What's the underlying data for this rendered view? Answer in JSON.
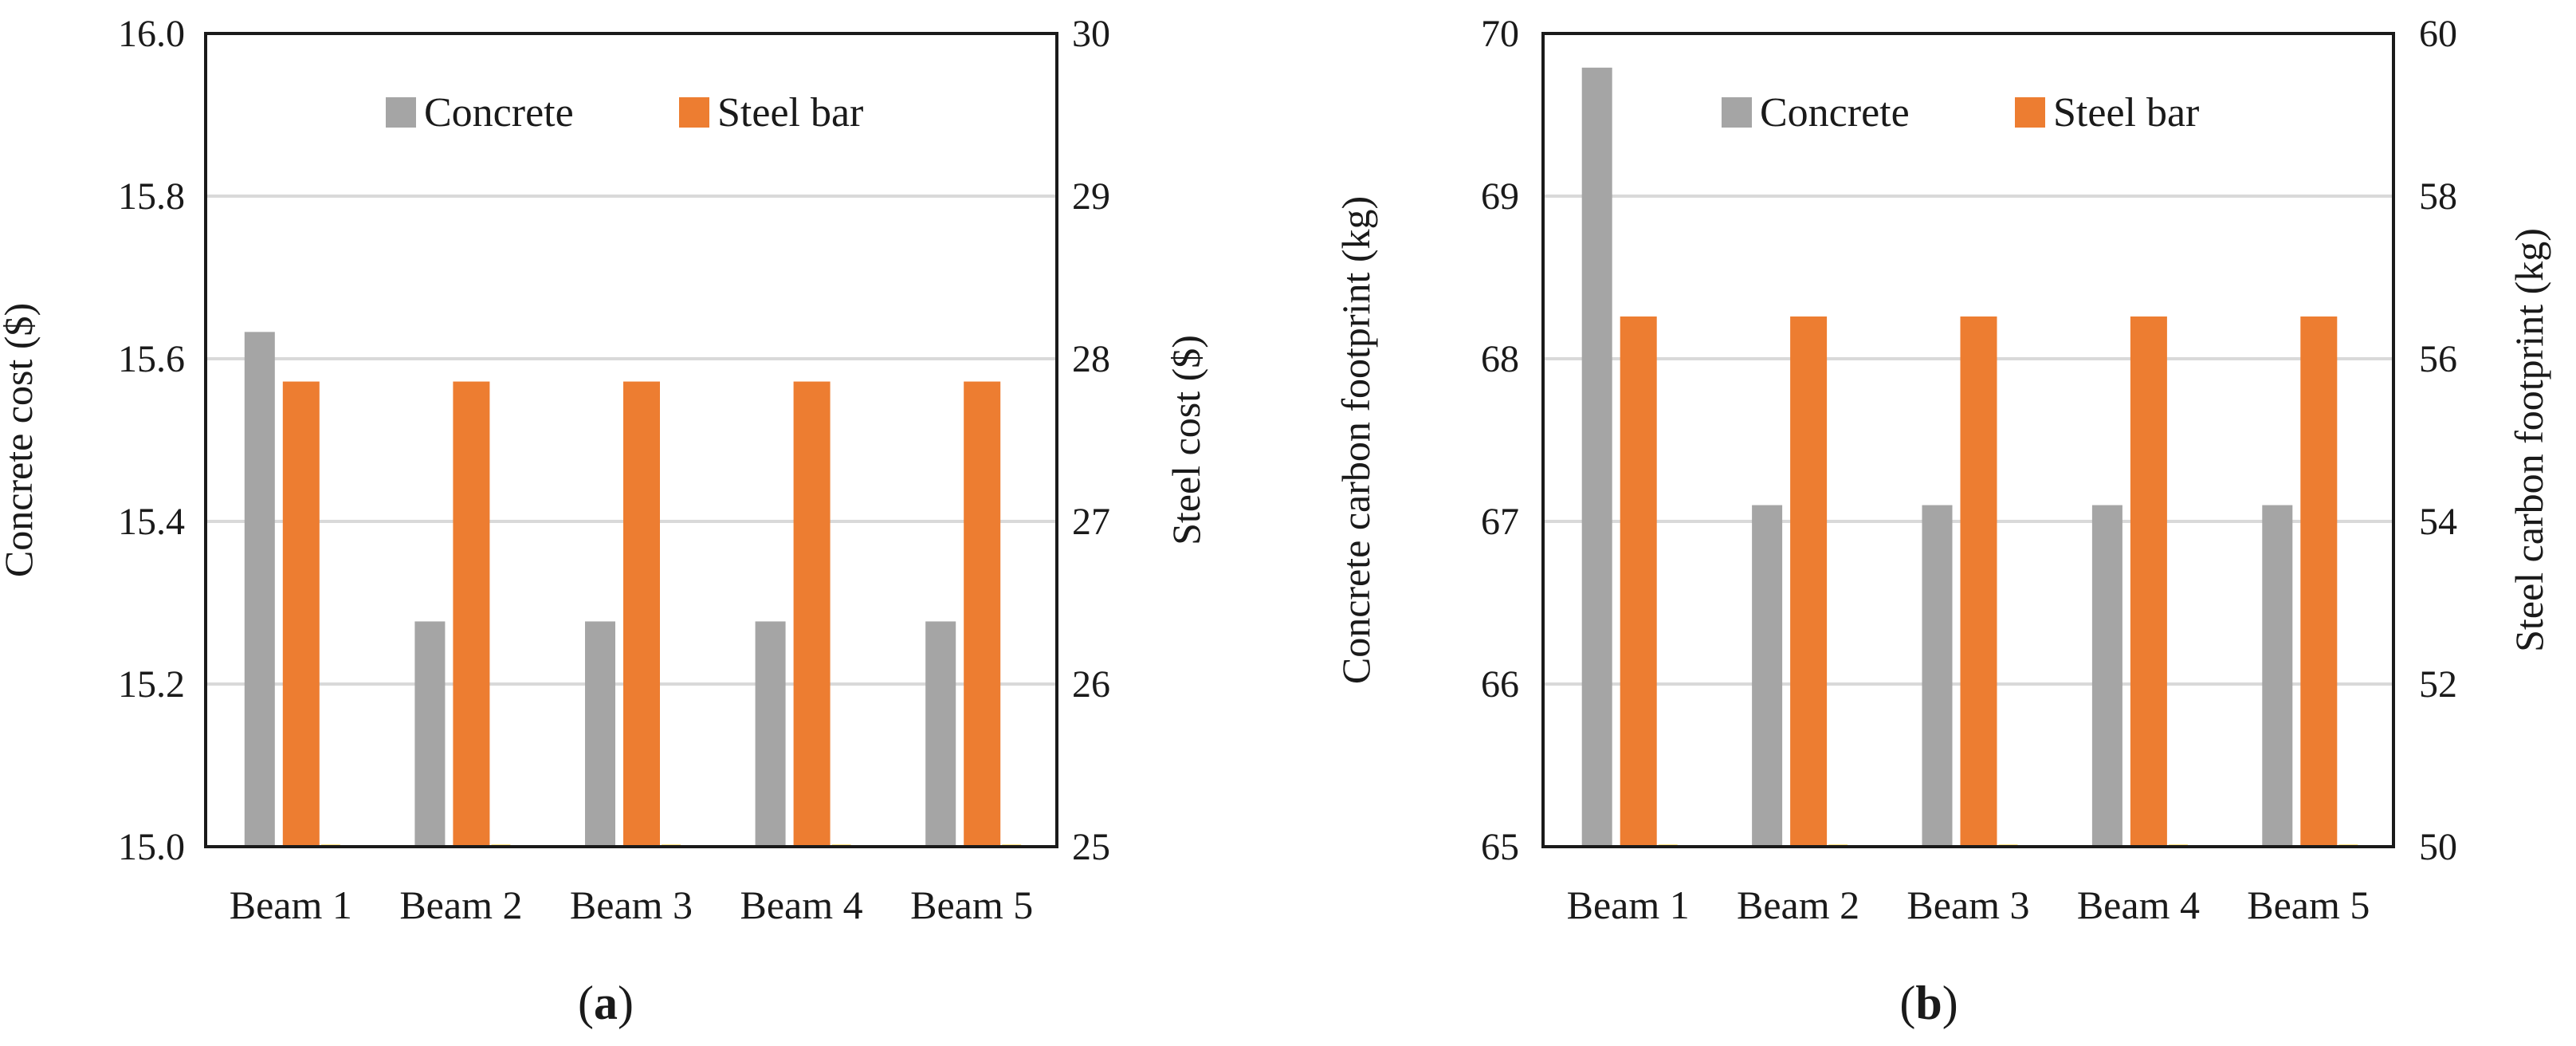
{
  "chart_data": [
    {
      "id": "a",
      "type": "bar",
      "panel_label": "a",
      "categories": [
        "Beam 1",
        "Beam 2",
        "Beam 3",
        "Beam 4",
        "Beam 5"
      ],
      "series": [
        {
          "name": "Concrete",
          "axis": "left",
          "color": "#a5a5a5",
          "values": [
            15.633,
            15.277,
            15.277,
            15.277,
            15.277
          ]
        },
        {
          "name": "Steel bar",
          "axis": "right",
          "color": "#ed7d31",
          "values": [
            27.86,
            27.86,
            27.86,
            27.86,
            27.86
          ]
        }
      ],
      "ylabel_left": "Concrete cost ($)",
      "ylabel_right": "Steel cost ($)",
      "ylim_left": [
        15.0,
        16.0
      ],
      "ylim_right": [
        25,
        30
      ],
      "yticks_left": [
        "15.0",
        "15.2",
        "15.4",
        "15.6",
        "15.8",
        "16.0"
      ],
      "yticks_right": [
        "25",
        "26",
        "27",
        "28",
        "29",
        "30"
      ],
      "grid": true,
      "legend": "top-center"
    },
    {
      "id": "b",
      "type": "bar",
      "panel_label": "b",
      "categories": [
        "Beam 1",
        "Beam 2",
        "Beam 3",
        "Beam 4",
        "Beam 5"
      ],
      "series": [
        {
          "name": "Concrete",
          "axis": "left",
          "color": "#a5a5a5",
          "values": [
            69.79,
            67.1,
            67.1,
            67.1,
            67.1
          ]
        },
        {
          "name": "Steel bar",
          "axis": "right",
          "color": "#ed7d31",
          "values": [
            56.52,
            56.52,
            56.52,
            56.52,
            56.52
          ]
        }
      ],
      "ylabel_left": "Concrete carbon footprint (kg)",
      "ylabel_right": "Steel carbon footprint (kg)",
      "ylim_left": [
        65,
        70
      ],
      "ylim_right": [
        50,
        60
      ],
      "yticks_left": [
        "65",
        "66",
        "67",
        "68",
        "69",
        "70"
      ],
      "yticks_right": [
        "50",
        "52",
        "54",
        "56",
        "58",
        "60"
      ],
      "grid": true,
      "legend": "top-center"
    }
  ]
}
